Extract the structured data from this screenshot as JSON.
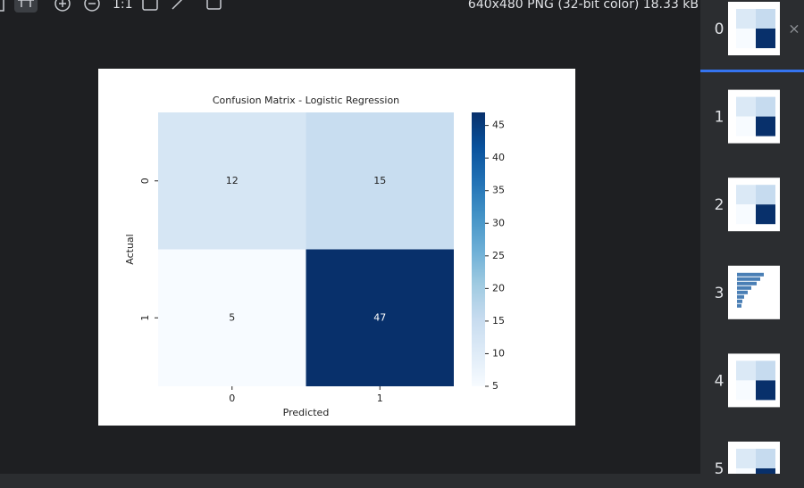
{
  "toolbar": {
    "zoom_label": "1:1",
    "image_info": "640x480 PNG (32-bit color) 18.33 kB"
  },
  "chart_data": {
    "type": "heatmap",
    "title": "Confusion Matrix - Logistic Regression",
    "x_label": "Predicted",
    "y_label": "Actual",
    "x_categories": [
      "0",
      "1"
    ],
    "y_categories": [
      "0",
      "1"
    ],
    "values": [
      [
        12,
        15
      ],
      [
        5,
        47
      ]
    ],
    "clim": [
      5,
      47
    ],
    "colorbar_ticks": [
      5,
      10,
      15,
      20,
      25,
      30,
      35,
      40,
      45
    ],
    "colormap": [
      "#f7fbff",
      "#deebf7",
      "#c6dbef",
      "#9ecae1",
      "#6baed6",
      "#4292c6",
      "#2171b5",
      "#08519c",
      "#08306b"
    ]
  },
  "thumbnails": [
    "0",
    "1",
    "2",
    "3",
    "4",
    "5"
  ]
}
